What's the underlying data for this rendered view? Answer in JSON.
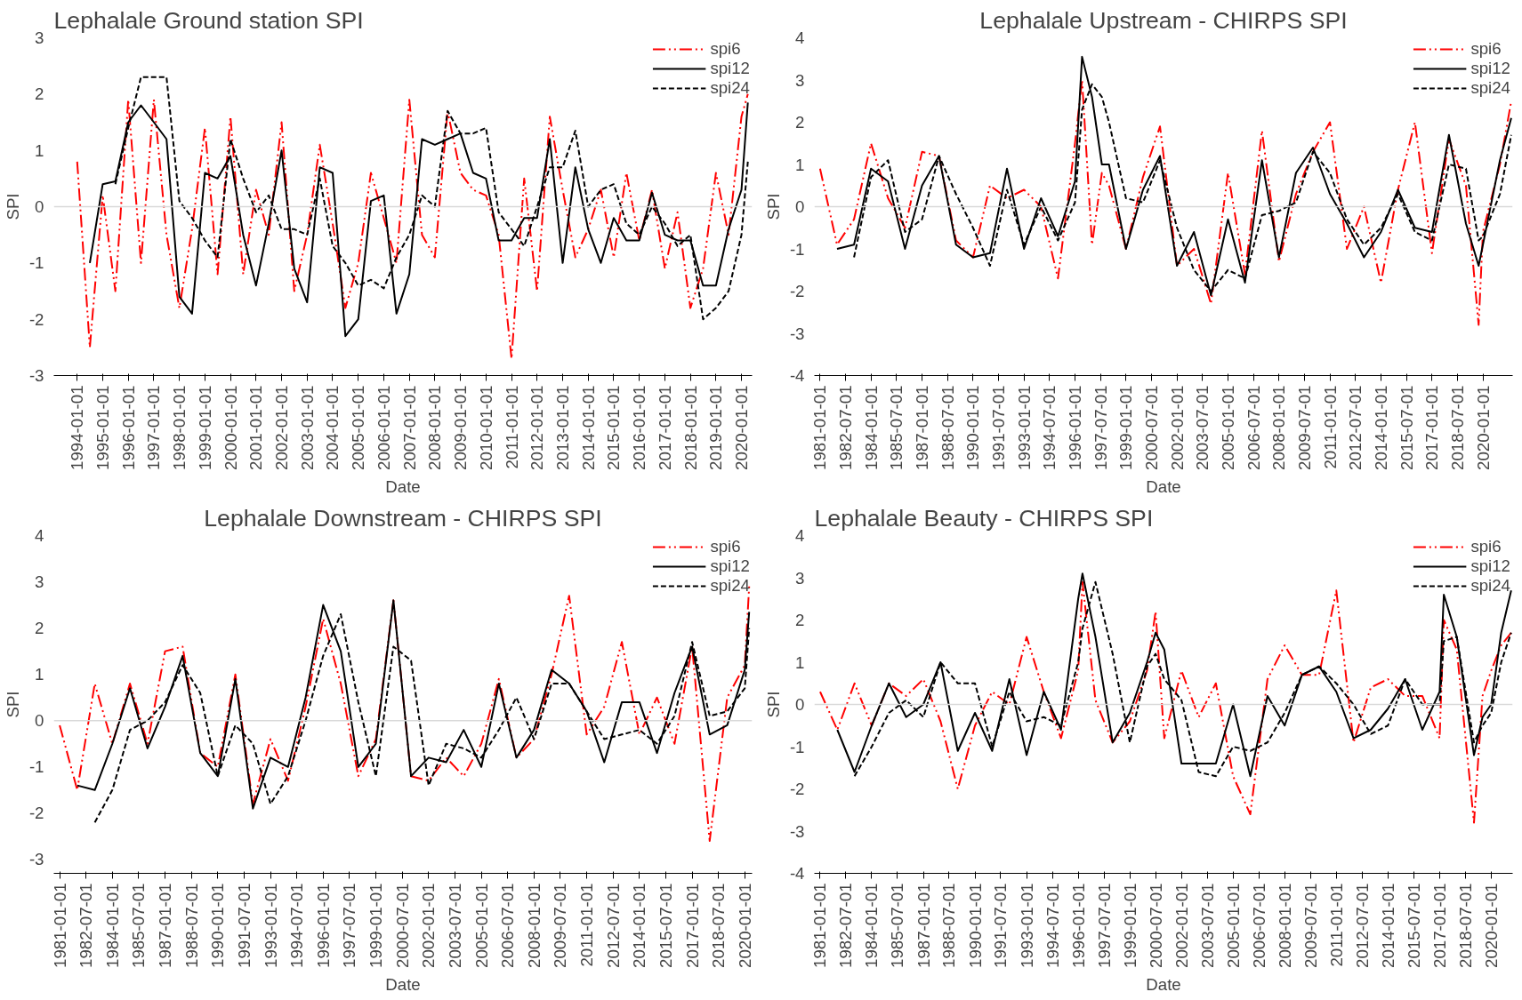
{
  "chart_data": [
    {
      "type": "line",
      "title": "Lephalale Ground station SPI",
      "xlabel": "Date",
      "ylabel": "SPI",
      "legend": "top right",
      "grid": false,
      "ylim": [
        -3,
        3
      ],
      "yticks": [
        -3,
        -2,
        -1,
        0,
        1,
        2,
        3
      ],
      "xlim": [
        "1993-02-01",
        "2020-06-01"
      ],
      "xticks": [
        "1994-01-01",
        "1995-01-01",
        "1996-01-01",
        "1997-01-01",
        "1998-01-01",
        "1999-01-01",
        "2000-01-01",
        "2001-01-01",
        "2002-01-01",
        "2003-01-01",
        "2004-01-01",
        "2005-01-01",
        "2006-01-01",
        "2007-01-01",
        "2008-01-01",
        "2009-01-01",
        "2010-01-01",
        "2011-01-01",
        "2012-01-01",
        "2013-01-01",
        "2014-01-01",
        "2015-01-01",
        "2016-01-01",
        "2017-01-01",
        "2018-01-01",
        "2019-01-01",
        "2020-01-01"
      ],
      "ref_lines": [
        {
          "axis": "y",
          "value": 0,
          "color": "#d9d9d9"
        }
      ],
      "x": [
        "1994-01",
        "1994-07",
        "1995-01",
        "1995-07",
        "1996-01",
        "1996-07",
        "1997-01",
        "1997-07",
        "1998-01",
        "1998-07",
        "1999-01",
        "1999-07",
        "2000-01",
        "2000-07",
        "2001-01",
        "2001-07",
        "2002-01",
        "2002-07",
        "2003-01",
        "2003-07",
        "2004-01",
        "2004-07",
        "2005-01",
        "2005-07",
        "2006-01",
        "2006-07",
        "2007-01",
        "2007-07",
        "2008-01",
        "2008-07",
        "2009-01",
        "2009-07",
        "2010-01",
        "2010-07",
        "2011-01",
        "2011-07",
        "2012-01",
        "2012-07",
        "2013-01",
        "2013-07",
        "2014-01",
        "2014-07",
        "2015-01",
        "2015-07",
        "2016-01",
        "2016-07",
        "2017-01",
        "2017-07",
        "2018-01",
        "2018-07",
        "2019-01",
        "2019-07",
        "2020-01",
        "2020-04"
      ],
      "series": [
        {
          "name": "spi6",
          "color": "#ff0000",
          "line_style": "dashdot",
          "values": [
            0.8,
            -2.5,
            0.2,
            -1.5,
            1.9,
            -1.0,
            1.9,
            -0.5,
            -1.8,
            -0.4,
            1.4,
            -1.2,
            1.6,
            -1.2,
            0.3,
            -0.5,
            1.5,
            -1.5,
            -0.5,
            1.1,
            -0.3,
            -1.8,
            -1.0,
            0.6,
            -0.2,
            -1.0,
            1.9,
            -0.5,
            -0.9,
            1.7,
            0.6,
            0.3,
            0.2,
            -0.5,
            -2.7,
            0.5,
            -1.5,
            1.6,
            0.3,
            -0.9,
            -0.4,
            0.3,
            -0.9,
            0.6,
            -0.6,
            0.3,
            -1.1,
            -0.1,
            -1.8,
            -1.1,
            0.6,
            -0.5,
            1.6,
            2.0
          ]
        },
        {
          "name": "spi12",
          "color": "#000000",
          "line_style": "solid",
          "values": [
            null,
            -1.0,
            0.4,
            0.45,
            1.5,
            1.8,
            1.5,
            1.2,
            -1.6,
            -1.9,
            0.6,
            0.5,
            0.9,
            -0.5,
            -1.4,
            -0.3,
            1.0,
            -1.1,
            -1.7,
            0.7,
            0.6,
            -2.3,
            -2.0,
            0.1,
            0.2,
            -1.9,
            -1.2,
            1.2,
            1.1,
            1.2,
            1.3,
            0.6,
            0.5,
            -0.6,
            -0.6,
            -0.2,
            -0.2,
            1.2,
            -1.0,
            0.7,
            -0.4,
            -1.0,
            -0.2,
            -0.6,
            -0.6,
            0.25,
            -0.5,
            -0.6,
            -0.6,
            -1.4,
            -1.4,
            -0.4,
            0.3,
            1.85
          ]
        },
        {
          "name": "spi24",
          "color": "#000000",
          "line_style": "dashed",
          "values": [
            null,
            null,
            null,
            0.4,
            1.4,
            2.3,
            2.3,
            2.3,
            0.1,
            -0.2,
            -0.6,
            -0.9,
            1.2,
            0.5,
            -0.1,
            0.2,
            -0.4,
            -0.4,
            -0.5,
            0.5,
            -0.7,
            -1.0,
            -1.4,
            -1.3,
            -1.45,
            -0.9,
            -0.5,
            0.2,
            0.0,
            1.7,
            1.3,
            1.3,
            1.4,
            -0.1,
            -0.4,
            -0.7,
            0.0,
            0.7,
            0.7,
            1.35,
            0.0,
            0.3,
            0.4,
            -0.3,
            -0.5,
            0.0,
            -0.3,
            -0.7,
            -0.5,
            -2.0,
            -1.8,
            -1.5,
            -0.5,
            0.8
          ]
        }
      ]
    },
    {
      "type": "line",
      "title": "Lephalale Upstream - CHIRPS SPI",
      "xlabel": "Date",
      "ylabel": "SPI",
      "legend": "top right",
      "grid": false,
      "ylim": [
        -4,
        4
      ],
      "yticks": [
        -4,
        -3,
        -2,
        -1,
        0,
        1,
        2,
        3,
        4
      ],
      "xlim": [
        "1980-09-01",
        "2021-10-01"
      ],
      "xticks": [
        "1981-01-01",
        "1982-07-01",
        "1984-01-01",
        "1985-07-01",
        "1987-01-01",
        "1988-07-01",
        "1990-01-01",
        "1991-07-01",
        "1993-01-01",
        "1994-07-01",
        "1996-01-01",
        "1997-07-01",
        "1999-01-01",
        "2000-07-01",
        "2002-01-01",
        "2003-07-01",
        "2005-01-01",
        "2006-07-01",
        "2008-01-01",
        "2009-07-01",
        "2011-01-01",
        "2012-07-01",
        "2014-01-01",
        "2015-07-01",
        "2017-01-01",
        "2018-07-01",
        "2020-01-01"
      ],
      "ref_lines": [
        {
          "axis": "y",
          "value": 0,
          "color": "#d9d9d9"
        }
      ],
      "x": [
        "1981",
        "1982",
        "1983",
        "1984",
        "1985",
        "1986",
        "1987",
        "1988",
        "1989",
        "1990",
        "1991",
        "1992",
        "1993",
        "1994",
        "1995",
        "1996",
        "1996-06",
        "1997",
        "1997-08",
        "1998",
        "1999",
        "2000",
        "2001",
        "2002",
        "2003",
        "2004",
        "2005",
        "2006",
        "2007",
        "2008",
        "2009",
        "2010",
        "2011",
        "2012",
        "2013",
        "2014",
        "2015",
        "2016",
        "2017",
        "2018",
        "2019",
        "2019-10",
        "2020",
        "2021",
        "2021-09"
      ],
      "series": [
        {
          "name": "spi6",
          "color": "#ff0000",
          "line_style": "dashdot",
          "values": [
            0.9,
            -0.9,
            -0.3,
            1.5,
            0.2,
            -0.5,
            1.3,
            1.2,
            -0.8,
            -1.2,
            0.5,
            0.2,
            0.4,
            0.0,
            -1.7,
            1.5,
            3.0,
            -0.9,
            0.8,
            0.5,
            -1.0,
            0.7,
            1.9,
            -1.4,
            -1.0,
            -2.3,
            0.8,
            -1.6,
            1.8,
            -1.3,
            0.3,
            1.3,
            2.0,
            -1.0,
            0.0,
            -1.8,
            0.4,
            2.0,
            -1.1,
            1.6,
            0.5,
            -2.8,
            -0.6,
            1.0,
            2.5
          ]
        },
        {
          "name": "spi12",
          "color": "#000000",
          "line_style": "solid",
          "values": [
            null,
            -1.0,
            -0.9,
            0.9,
            0.6,
            -1.0,
            0.5,
            1.2,
            -0.9,
            -1.2,
            -1.1,
            0.9,
            -1.0,
            0.2,
            -0.7,
            0.6,
            3.55,
            2.6,
            1.0,
            1.0,
            -1.0,
            0.4,
            1.2,
            -1.4,
            -0.6,
            -2.1,
            -0.3,
            -1.8,
            1.1,
            -1.2,
            0.8,
            1.4,
            0.3,
            -0.4,
            -1.2,
            -0.6,
            0.4,
            -0.5,
            -0.6,
            1.7,
            -0.4,
            -1.4,
            -0.9,
            1.1,
            2.1
          ]
        },
        {
          "name": "spi24",
          "color": "#000000",
          "line_style": "dashed",
          "values": [
            null,
            null,
            -1.2,
            0.7,
            1.1,
            -0.6,
            -0.3,
            1.2,
            0.3,
            -0.5,
            -1.4,
            0.4,
            -0.9,
            0.0,
            -0.8,
            0.1,
            2.3,
            2.9,
            2.6,
            2.0,
            0.2,
            0.1,
            1.1,
            -0.5,
            -1.5,
            -2.0,
            -1.5,
            -1.7,
            -0.2,
            -0.1,
            0.1,
            1.3,
            0.8,
            -0.3,
            -0.9,
            -0.5,
            0.3,
            -0.6,
            -0.8,
            1.0,
            0.9,
            -0.8,
            -0.7,
            0.3,
            1.7
          ]
        }
      ]
    },
    {
      "type": "line",
      "title": "Lephalale Downstream - CHIRPS SPI",
      "xlabel": "Date",
      "ylabel": "SPI",
      "legend": "top right",
      "grid": false,
      "ylim": [
        -3.3,
        4
      ],
      "yticks": [
        -3,
        -2,
        -1,
        0,
        1,
        2,
        3,
        4
      ],
      "xlim": [
        "1980-09-01",
        "2020-06-01"
      ],
      "xticks": [
        "1981-01-01",
        "1982-07-01",
        "1984-01-01",
        "1985-07-01",
        "1987-01-01",
        "1988-07-01",
        "1990-01-01",
        "1991-07-01",
        "1993-01-01",
        "1994-07-01",
        "1996-01-01",
        "1997-07-01",
        "1999-01-01",
        "2000-07-01",
        "2002-01-01",
        "2003-07-01",
        "2005-01-01",
        "2006-07-01",
        "2008-01-01",
        "2009-07-01",
        "2011-01-01",
        "2012-07-01",
        "2014-01-01",
        "2015-07-01",
        "2017-01-01",
        "2018-07-01",
        "2020-01-01"
      ],
      "ref_lines": [
        {
          "axis": "y",
          "value": 0,
          "color": "#d9d9d9"
        }
      ],
      "x": [
        "1981",
        "1982",
        "1983",
        "1984",
        "1985",
        "1986",
        "1987",
        "1988",
        "1989",
        "1990",
        "1991",
        "1992",
        "1993",
        "1994",
        "1995",
        "1996",
        "1997",
        "1998",
        "1999",
        "2000",
        "2001",
        "2002",
        "2003",
        "2004",
        "2005",
        "2006",
        "2007",
        "2008",
        "2009",
        "2010",
        "2011",
        "2012",
        "2013",
        "2014",
        "2015",
        "2016",
        "2017",
        "2018",
        "2019",
        "2020",
        "2020-04"
      ],
      "series": [
        {
          "name": "spi6",
          "color": "#ff0000",
          "line_style": "dashdot",
          "values": [
            -0.1,
            -1.5,
            0.8,
            -0.5,
            0.8,
            -0.5,
            1.5,
            1.6,
            -0.7,
            -1.0,
            1.0,
            -1.8,
            -0.4,
            -1.3,
            0.3,
            2.2,
            0.8,
            -1.2,
            -0.4,
            2.6,
            -1.2,
            -1.3,
            -0.8,
            -1.2,
            -0.5,
            0.9,
            -0.8,
            -0.4,
            1.0,
            2.7,
            -0.3,
            0.3,
            1.7,
            -0.3,
            0.5,
            -0.5,
            1.6,
            -2.6,
            0.5,
            1.2,
            2.9
          ]
        },
        {
          "name": "spi12",
          "color": "#000000",
          "line_style": "solid",
          "values": [
            null,
            -1.4,
            -1.5,
            -0.5,
            0.7,
            -0.6,
            0.3,
            1.4,
            -0.7,
            -1.2,
            0.9,
            -1.9,
            -0.8,
            -1.0,
            0.5,
            2.5,
            1.5,
            -1.0,
            -0.5,
            2.6,
            -1.2,
            -0.8,
            -0.9,
            -0.2,
            -1.0,
            0.8,
            -0.8,
            -0.2,
            1.1,
            0.8,
            0.2,
            -0.9,
            0.4,
            0.4,
            -0.7,
            0.6,
            1.6,
            -0.3,
            -0.1,
            1.1,
            2.35
          ]
        },
        {
          "name": "spi24",
          "color": "#000000",
          "line_style": "dashed",
          "values": [
            null,
            null,
            -2.2,
            -1.5,
            -0.2,
            0.0,
            0.4,
            1.2,
            0.6,
            -1.2,
            -0.1,
            -0.5,
            -1.8,
            -1.2,
            0.0,
            1.4,
            2.3,
            0.4,
            -1.2,
            1.6,
            1.3,
            -1.4,
            -0.5,
            -0.6,
            -0.8,
            -0.2,
            0.5,
            -0.4,
            0.8,
            0.8,
            0.2,
            -0.4,
            -0.3,
            -0.2,
            -0.5,
            0.1,
            1.7,
            0.1,
            0.2,
            0.7,
            2.0
          ]
        }
      ]
    },
    {
      "type": "line",
      "title": "Lephalale  Beauty - CHIRPS SPI",
      "xlabel": "Date",
      "ylabel": "SPI",
      "legend": "top right",
      "grid": false,
      "ylim": [
        -4,
        4
      ],
      "yticks": [
        -4,
        -3,
        -2,
        -1,
        0,
        1,
        2,
        3,
        4
      ],
      "xlim": [
        "1980-09-01",
        "2021-04-01"
      ],
      "xticks": [
        "1981-01-01",
        "1982-07-01",
        "1984-01-01",
        "1985-07-01",
        "1987-01-01",
        "1988-07-01",
        "1990-01-01",
        "1991-07-01",
        "1993-01-01",
        "1994-07-01",
        "1996-01-01",
        "1997-07-01",
        "1999-01-01",
        "2000-07-01",
        "2002-01-01",
        "2003-07-01",
        "2005-01-01",
        "2006-07-01",
        "2008-01-01",
        "2009-07-01",
        "2011-01-01",
        "2012-07-01",
        "2014-01-01",
        "2015-07-01",
        "2017-01-01",
        "2018-07-01",
        "2020-01-01"
      ],
      "ref_lines": [
        {
          "axis": "y",
          "value": 0,
          "color": "#d9d9d9"
        }
      ],
      "x": [
        "1981",
        "1982",
        "1983",
        "1984",
        "1985",
        "1986",
        "1987",
        "1988",
        "1989",
        "1990",
        "1991",
        "1992",
        "1993",
        "1994",
        "1995",
        "1996",
        "1996-04",
        "1997",
        "1998",
        "1999",
        "2000",
        "2000-07",
        "2001",
        "2002",
        "2003",
        "2004",
        "2005",
        "2006",
        "2007",
        "2008",
        "2009",
        "2010",
        "2011",
        "2012",
        "2013",
        "2014",
        "2015",
        "2016",
        "2017",
        "2017-04",
        "2018",
        "2019",
        "2019-07",
        "2020",
        "2020-08",
        "2021-03"
      ],
      "series": [
        {
          "name": "spi6",
          "color": "#ff0000",
          "line_style": "dashdot",
          "values": [
            0.3,
            -0.6,
            0.5,
            -0.5,
            0.5,
            0.2,
            0.6,
            -0.4,
            -2.0,
            -0.5,
            0.3,
            0.0,
            1.6,
            0.3,
            -0.8,
            0.8,
            2.9,
            0.1,
            -0.9,
            -0.4,
            0.8,
            2.2,
            -0.8,
            0.8,
            -0.3,
            0.5,
            -1.7,
            -2.6,
            0.6,
            1.4,
            0.7,
            0.7,
            2.7,
            -0.9,
            0.4,
            0.6,
            0.2,
            0.2,
            -0.8,
            2.0,
            1.3,
            -2.8,
            0.2,
            0.8,
            1.4,
            1.7
          ]
        },
        {
          "name": "spi12",
          "color": "#000000",
          "line_style": "solid",
          "values": [
            null,
            -0.6,
            -1.6,
            -0.5,
            0.5,
            -0.3,
            0.0,
            1.0,
            -1.1,
            -0.2,
            -1.1,
            0.6,
            -1.2,
            0.3,
            -0.6,
            2.5,
            3.1,
            1.6,
            -0.9,
            -0.2,
            1.0,
            1.7,
            1.3,
            -1.4,
            -1.4,
            -1.4,
            0.0,
            -1.7,
            0.2,
            -0.5,
            0.7,
            0.9,
            0.3,
            -0.8,
            -0.6,
            -0.1,
            0.6,
            -0.6,
            0.3,
            2.6,
            1.6,
            -1.2,
            -0.3,
            0.0,
            1.7,
            2.7
          ]
        },
        {
          "name": "spi24",
          "color": "#000000",
          "line_style": "dashed",
          "values": [
            null,
            null,
            -1.7,
            -1.0,
            -0.2,
            0.1,
            -0.3,
            1.0,
            0.5,
            0.5,
            -1.0,
            0.3,
            -0.4,
            -0.3,
            -0.5,
            1.0,
            1.8,
            2.9,
            1.2,
            -0.9,
            0.9,
            1.2,
            0.6,
            0.1,
            -1.6,
            -1.7,
            -1.0,
            -1.1,
            -0.9,
            -0.2,
            0.7,
            0.9,
            0.5,
            0.0,
            -0.7,
            -0.5,
            0.6,
            0.0,
            0.0,
            1.5,
            1.6,
            -0.9,
            -0.5,
            -0.2,
            1.0,
            1.7
          ]
        }
      ]
    }
  ]
}
